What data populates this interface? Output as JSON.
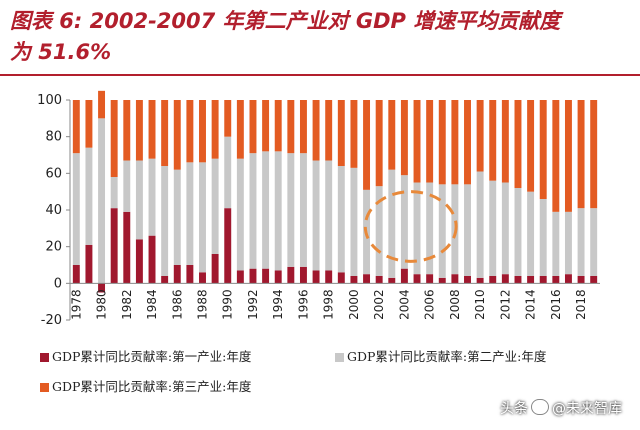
{
  "title_line1": "图表 6: 2002-2007 年第二产业对 GDP 增速平均贡献度",
  "title_line2": "为 51.6%",
  "watermark": {
    "prefix": "头条",
    "handle": "@未来智库",
    "icon": "wechat-icon"
  },
  "chart_data": {
    "type": "bar",
    "stacked": true,
    "categories": [
      "1978",
      "1979",
      "1980",
      "1981",
      "1982",
      "1983",
      "1984",
      "1985",
      "1986",
      "1987",
      "1988",
      "1989",
      "1990",
      "1991",
      "1992",
      "1993",
      "1994",
      "1995",
      "1996",
      "1997",
      "1998",
      "1999",
      "2000",
      "2001",
      "2002",
      "2003",
      "2004",
      "2005",
      "2006",
      "2007",
      "2008",
      "2009",
      "2010",
      "2011",
      "2012",
      "2013",
      "2014",
      "2015",
      "2016",
      "2017",
      "2018",
      "2019"
    ],
    "x_tick_labels": [
      "1978",
      "1980",
      "1982",
      "1984",
      "1986",
      "1988",
      "1990",
      "1992",
      "1994",
      "1996",
      "1998",
      "2000",
      "2002",
      "2004",
      "2006",
      "2008",
      "2010",
      "2012",
      "2014",
      "2016",
      "2018"
    ],
    "ylim": [
      -20,
      100
    ],
    "yticks": [
      "-20",
      "0",
      "20",
      "40",
      "60",
      "80",
      "100"
    ],
    "grid": false,
    "series": [
      {
        "name": "GDP累计同比贡献率:第一产业:年度",
        "color": "#a0182e",
        "values": [
          10,
          21,
          -5,
          41,
          39,
          24,
          26,
          4,
          10,
          10,
          6,
          16,
          41,
          7,
          8,
          8,
          7,
          9,
          9,
          7,
          7,
          6,
          4,
          5,
          4,
          3,
          8,
          5,
          5,
          3,
          5,
          4,
          3,
          4,
          5,
          4,
          4,
          4,
          4,
          5,
          4,
          4
        ]
      },
      {
        "name": "GDP累计同比贡献率:第二产业:年度",
        "color": "#c8c8c8",
        "values": [
          61,
          53,
          90,
          17,
          28,
          43,
          42,
          60,
          52,
          56,
          60,
          52,
          39,
          61,
          63,
          64,
          65,
          62,
          62,
          60,
          60,
          58,
          59,
          46,
          49,
          59,
          51,
          50,
          50,
          51,
          49,
          50,
          58,
          52,
          50,
          48,
          46,
          42,
          35,
          34,
          37,
          37
        ]
      },
      {
        "name": "GDP累计同比贡献率:第三产业:年度",
        "color": "#e35b22",
        "values": [
          29,
          26,
          15,
          42,
          33,
          33,
          32,
          36,
          38,
          34,
          34,
          32,
          20,
          32,
          29,
          28,
          28,
          29,
          29,
          33,
          33,
          36,
          37,
          49,
          47,
          38,
          41,
          45,
          45,
          46,
          46,
          46,
          39,
          44,
          45,
          48,
          50,
          54,
          61,
          61,
          59,
          59
        ]
      }
    ],
    "annotation": {
      "shape": "dashed-ellipse",
      "color": "#e8893a",
      "years": [
        "2002",
        "2007"
      ],
      "y_range": [
        12,
        50
      ]
    }
  }
}
